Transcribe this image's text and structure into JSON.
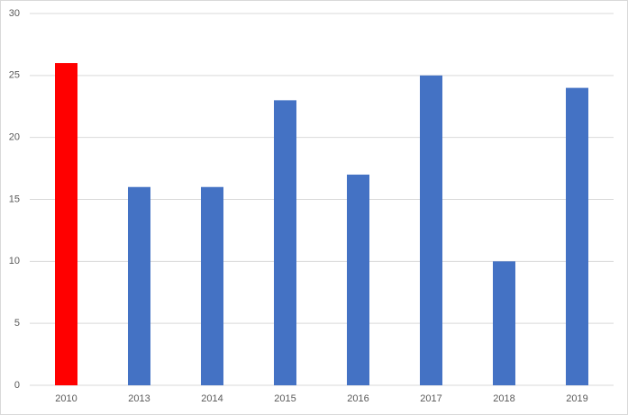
{
  "chart_data": {
    "type": "bar",
    "categories": [
      "2010",
      "2013",
      "2014",
      "2015",
      "2016",
      "2017",
      "2018",
      "2019"
    ],
    "values": [
      26,
      16,
      16,
      23,
      17,
      25,
      10,
      24
    ],
    "colors": [
      "#ff0000",
      "#4472c4",
      "#4472c4",
      "#4472c4",
      "#4472c4",
      "#4472c4",
      "#4472c4",
      "#4472c4"
    ],
    "ylim": [
      0,
      30
    ],
    "yticks": [
      0,
      5,
      10,
      15,
      20,
      25,
      30
    ],
    "grid": true
  }
}
